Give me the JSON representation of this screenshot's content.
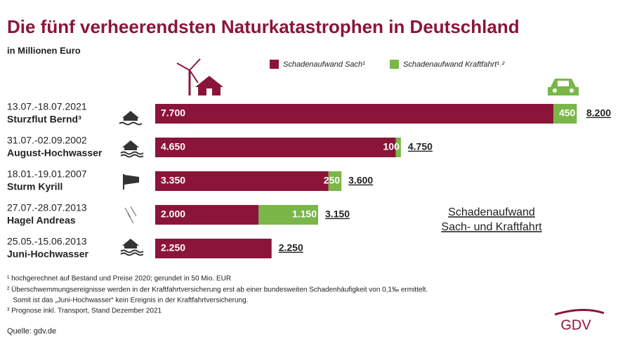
{
  "chart_data": {
    "type": "stacked-bar-horizontal",
    "title": "Die fünf verheerendsten Naturkatastrophen in Deutschland",
    "subtitle": "in Millionen Euro",
    "dates": [
      "13.07.-18.07.2021",
      "31.07.-02.09.2002",
      "18.01.-19.01.2007",
      "27.07.-28.07.2013",
      "25.05.-15.06.2013"
    ],
    "categories": [
      "Sturzflut Bernd³",
      "August-Hochwasser",
      "Sturm Kyrill",
      "Hagel Andreas",
      "Juni-Hochwasser"
    ],
    "series": [
      {
        "name": "Schadenaufwand Sach¹",
        "color": "#8b1538",
        "values": [
          7700,
          4650,
          3350,
          2000,
          2250
        ],
        "value_labels": [
          "7.700",
          "4.650",
          "3.350",
          "2.000",
          "2.250"
        ]
      },
      {
        "name": "Schadenaufwand Kraftfahrt¹˒²",
        "color": "#7ab648",
        "values": [
          450,
          100,
          250,
          1150,
          null
        ],
        "value_labels": [
          "450",
          "100",
          "250",
          "1.150",
          null
        ]
      }
    ],
    "totals": {
      "values": [
        8200,
        4750,
        3600,
        3150,
        2250
      ],
      "value_labels": [
        "8.200",
        "4.750",
        "3.600",
        "3.150",
        "2.250"
      ]
    },
    "annotation": [
      "Schadenaufwand",
      "Sach- und Kraftfahrt"
    ],
    "footnotes": [
      "¹ hochgerechnet auf Bestand und Preise 2020; gerundet in 50 Mio. EUR",
      "² Überschwemmungsereignisse werden in der Kraftfahrtversicherung erst ab einer bundesweiten Schadenhäufigkeit von 0,1‰ ermittelt.",
      "   Somit ist das „Juni-Hochwasser“ kein Ereignis in der Kraftfahrtversicherung.",
      "³ Prognose inkl. Transport, Stand Dezember 2021"
    ],
    "source": "Quelle: gdv.de",
    "logo": "GDV"
  }
}
